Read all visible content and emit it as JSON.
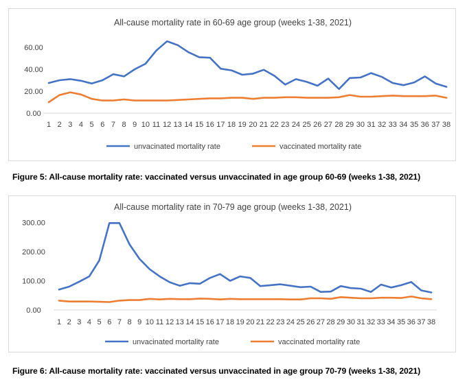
{
  "chart_data": [
    {
      "type": "line",
      "title": "All-cause mortality rate in 60-69 age group (weeks 1-38, 2021)",
      "caption": "Figure 5: All-cause mortality rate: vaccinated versus unvaccinated in age group 60-69 (weeks 1-38, 2021)",
      "categories": [
        "1",
        "2",
        "3",
        "4",
        "5",
        "6",
        "7",
        "8",
        "9",
        "10",
        "11",
        "12",
        "13",
        "14",
        "15",
        "16",
        "17",
        "18",
        "19",
        "20",
        "21",
        "22",
        "23",
        "24",
        "25",
        "26",
        "27",
        "28",
        "29",
        "30",
        "31",
        "32",
        "33",
        "34",
        "35",
        "36",
        "37",
        "38"
      ],
      "y_ticks": [
        "0.00",
        "20.00",
        "40.00",
        "60.00"
      ],
      "ylim": [
        0,
        70
      ],
      "grid": false,
      "legend_position": "bottom",
      "series": [
        {
          "name": "unvacinated mortality rate",
          "color": "#4472C4",
          "values": [
            27.5,
            30,
            31,
            29.5,
            27,
            30,
            35.5,
            33.5,
            40,
            45,
            57,
            65.5,
            62,
            55.5,
            51,
            50.5,
            40.5,
            39,
            35,
            36,
            39.5,
            34,
            26,
            31,
            28.5,
            25,
            31.5,
            22,
            32,
            32.5,
            36.5,
            33,
            27.5,
            25.5,
            28,
            33.5,
            27,
            24
          ]
        },
        {
          "name": "vaccinated mortality rate",
          "color": "#ED7D31",
          "values": [
            10,
            16.5,
            19,
            17,
            13,
            11.5,
            11.5,
            12.5,
            11.5,
            11.5,
            11.5,
            11.5,
            12,
            12.5,
            13,
            13.5,
            13.5,
            14,
            14,
            13,
            14,
            14,
            14.5,
            14.5,
            14,
            14,
            14,
            14.5,
            16.5,
            15,
            15,
            15.5,
            16,
            15.5,
            15.5,
            15.5,
            16,
            14
          ]
        }
      ]
    },
    {
      "type": "line",
      "title": "All-cause mortality rate in 70-79 age group (weeks 1-38, 2021)",
      "caption": "Figure 6: All-cause mortality rate: vaccinated versus unvaccinated in age group 70-79 (weeks 1-38, 2021)",
      "categories": [
        "1",
        "2",
        "3",
        "4",
        "5",
        "6",
        "7",
        "8",
        "9",
        "10",
        "11",
        "12",
        "13",
        "14",
        "15",
        "16",
        "17",
        "18",
        "19",
        "20",
        "21",
        "22",
        "23",
        "24",
        "25",
        "26",
        "27",
        "28",
        "29",
        "30",
        "31",
        "32",
        "33",
        "34",
        "35",
        "36",
        "37",
        "38"
      ],
      "y_ticks": [
        "0.00",
        "100.00",
        "200.00",
        "300.00"
      ],
      "ylim": [
        0,
        320
      ],
      "grid": false,
      "legend_position": "bottom",
      "series": [
        {
          "name": "unvacinated mortality rate",
          "color": "#4472C4",
          "values": [
            70,
            80,
            97,
            115,
            170,
            298,
            298,
            225,
            175,
            140,
            115,
            95,
            83,
            92,
            90,
            110,
            123,
            100,
            115,
            110,
            82,
            85,
            88,
            83,
            78,
            80,
            62,
            63,
            82,
            75,
            73,
            62,
            87,
            77,
            85,
            96,
            67,
            60
          ]
        },
        {
          "name": "vaccinated mortality rate",
          "color": "#ED7D31",
          "values": [
            32,
            29,
            29,
            29,
            28,
            27,
            32,
            34,
            34,
            38,
            36,
            38,
            37,
            37,
            39,
            38,
            36,
            38,
            37,
            37,
            37,
            37,
            37,
            36,
            36,
            40,
            40,
            38,
            44,
            42,
            40,
            40,
            42,
            42,
            41,
            46,
            40,
            37
          ]
        }
      ]
    }
  ]
}
